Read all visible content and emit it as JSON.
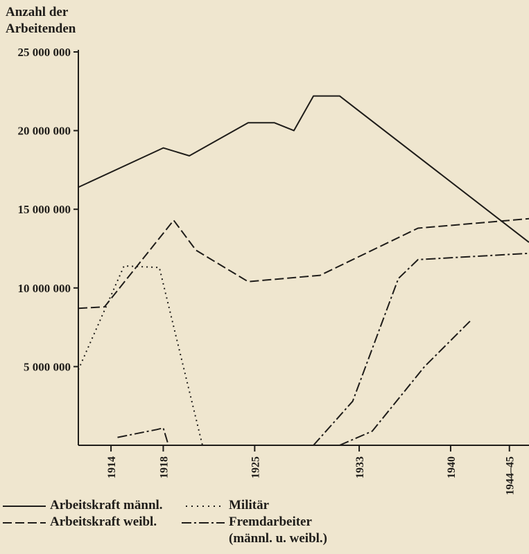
{
  "chart_data": {
    "type": "line",
    "ylabel_lines": [
      "Anzahl der",
      "Arbeitenden"
    ],
    "xlabel": "",
    "ylim": [
      0,
      25000000
    ],
    "yticks": [
      {
        "value": 25000000,
        "label": "25 000 000"
      },
      {
        "value": 20000000,
        "label": "20 000 000"
      },
      {
        "value": 15000000,
        "label": "15 000 000"
      },
      {
        "value": 10000000,
        "label": "10 000 000"
      },
      {
        "value": 5000000,
        "label": "5 000 000"
      }
    ],
    "xlim": [
      1911.5,
      1946.0
    ],
    "xticks": [
      {
        "value": 1914,
        "label": "1914"
      },
      {
        "value": 1918,
        "label": "1918"
      },
      {
        "value": 1925,
        "label": "1925"
      },
      {
        "value": 1933,
        "label": "1933"
      },
      {
        "value": 1940,
        "label": "1940"
      },
      {
        "value": 1944.5,
        "label": "1944–45"
      }
    ],
    "series": [
      {
        "name": "Arbeitskraft männl.",
        "style": "solid",
        "points": [
          [
            1911.5,
            16400000
          ],
          [
            1918,
            18900000
          ],
          [
            1920,
            18400000
          ],
          [
            1924.5,
            20500000
          ],
          [
            1926.5,
            20500000
          ],
          [
            1928,
            20000000
          ],
          [
            1929.5,
            22200000
          ],
          [
            1931.5,
            22200000
          ],
          [
            1946,
            12900000
          ]
        ]
      },
      {
        "name": "Arbeitskraft weibl.",
        "style": "dashed",
        "points": [
          [
            1911.5,
            8700000
          ],
          [
            1913.5,
            8800000
          ],
          [
            1918.8,
            14300000
          ],
          [
            1920.5,
            12400000
          ],
          [
            1924.5,
            10400000
          ],
          [
            1930,
            10800000
          ],
          [
            1937.5,
            13800000
          ],
          [
            1946,
            14400000
          ]
        ]
      },
      {
        "name": "Militär",
        "style": "dotted",
        "points": [
          [
            1911.5,
            4800000
          ],
          [
            1915,
            11400000
          ],
          [
            1917.7,
            11300000
          ],
          [
            1921,
            0
          ]
        ]
      },
      {
        "name": "Fremdarbeiter (männl. u. weibl.)",
        "style": "dashdot",
        "points": [
          [
            1914.5,
            500000
          ],
          [
            1917.5,
            1000000
          ],
          [
            1918,
            1100000
          ],
          [
            1918.4,
            0
          ],
          null,
          [
            1929.5,
            0
          ],
          [
            1932.5,
            2800000
          ],
          [
            1936,
            10600000
          ],
          [
            1937.5,
            11800000
          ],
          [
            1946,
            12200000
          ],
          null,
          [
            1931.5,
            0
          ],
          [
            1934,
            900000
          ],
          [
            1938,
            5000000
          ],
          [
            1941.5,
            7900000
          ]
        ]
      }
    ],
    "legend": {
      "placement": "bottom",
      "entries": [
        {
          "label": "Arbeitskraft männl.",
          "style": "solid"
        },
        {
          "label": "Arbeitskraft weibl.",
          "style": "dashed"
        },
        {
          "label": "Militär",
          "style": "dotted"
        },
        {
          "label_lines": [
            "Fremdarbeiter",
            "(männl. u. weibl.)"
          ],
          "style": "dashdot"
        }
      ]
    }
  },
  "colors": {
    "background": "#efe6cf",
    "ink": "#1f1d1a"
  }
}
